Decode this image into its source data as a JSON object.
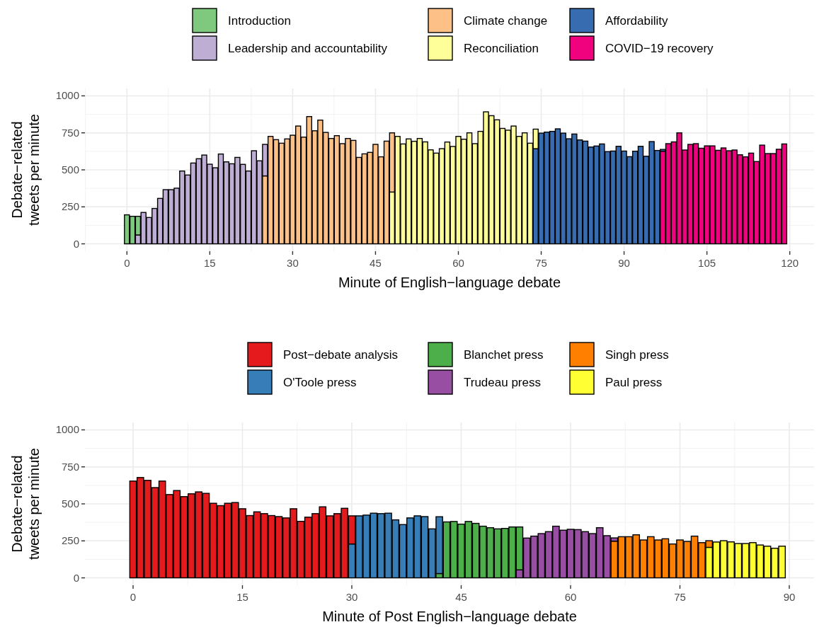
{
  "chart_data": [
    {
      "type": "bar",
      "stacked": true,
      "xlabel": "Minute of English−language debate",
      "ylabel": "Debate−related\ntweets per minute",
      "xlim": [
        -7.6,
        124.4
      ],
      "xticks": [
        0,
        15,
        30,
        45,
        60,
        75,
        90,
        105,
        120
      ],
      "ylim": [
        -50,
        1050
      ],
      "yticks": [
        0,
        250,
        500,
        750,
        1000
      ],
      "grid": true,
      "legend": "top",
      "x": [
        0,
        1,
        2,
        3,
        4,
        5,
        6,
        7,
        8,
        9,
        10,
        11,
        12,
        13,
        14,
        15,
        16,
        17,
        18,
        19,
        20,
        21,
        22,
        23,
        24,
        25,
        26,
        27,
        28,
        29,
        30,
        31,
        32,
        33,
        34,
        35,
        36,
        37,
        38,
        39,
        40,
        41,
        42,
        43,
        44,
        45,
        46,
        47,
        48,
        49,
        50,
        51,
        52,
        53,
        54,
        55,
        56,
        57,
        58,
        59,
        60,
        61,
        62,
        63,
        64,
        65,
        66,
        67,
        68,
        69,
        70,
        71,
        72,
        73,
        74,
        75,
        76,
        77,
        78,
        79,
        80,
        81,
        82,
        83,
        84,
        85,
        86,
        87,
        88,
        89,
        90,
        91,
        92,
        93,
        94,
        95,
        96,
        97,
        98,
        99,
        100,
        101,
        102,
        103,
        104,
        105,
        106,
        107,
        108,
        109,
        110,
        111,
        112,
        113,
        114,
        115,
        116,
        117,
        118,
        119
      ],
      "series": [
        {
          "name": "COVID−19 recovery",
          "color": "#f0027f",
          "values": [
            null,
            null,
            null,
            null,
            null,
            null,
            null,
            null,
            null,
            null,
            null,
            null,
            null,
            null,
            null,
            null,
            null,
            null,
            null,
            null,
            null,
            null,
            null,
            null,
            null,
            null,
            null,
            null,
            null,
            null,
            null,
            null,
            null,
            null,
            null,
            null,
            null,
            null,
            null,
            null,
            null,
            null,
            null,
            null,
            null,
            null,
            null,
            null,
            null,
            null,
            null,
            null,
            null,
            null,
            null,
            null,
            null,
            null,
            null,
            null,
            null,
            null,
            null,
            null,
            null,
            null,
            null,
            null,
            null,
            null,
            null,
            null,
            null,
            null,
            null,
            null,
            null,
            null,
            null,
            null,
            null,
            null,
            null,
            null,
            null,
            null,
            null,
            null,
            null,
            null,
            null,
            null,
            null,
            null,
            null,
            null,
            null,
            626,
            677,
            689,
            750,
            634,
            672,
            677,
            646,
            662,
            662,
            632,
            648,
            629,
            634,
            602,
            588,
            613,
            556,
            667,
            610,
            610,
            639,
            675
          ]
        },
        {
          "name": "Affordability",
          "color": "#386cb0",
          "values": [
            null,
            null,
            null,
            null,
            null,
            null,
            null,
            null,
            null,
            null,
            null,
            null,
            null,
            null,
            null,
            null,
            null,
            null,
            null,
            null,
            null,
            null,
            null,
            null,
            null,
            null,
            null,
            null,
            null,
            null,
            null,
            null,
            null,
            null,
            null,
            null,
            null,
            null,
            null,
            null,
            null,
            null,
            null,
            null,
            null,
            null,
            null,
            null,
            null,
            null,
            null,
            null,
            null,
            null,
            null,
            null,
            null,
            null,
            null,
            null,
            null,
            null,
            null,
            null,
            null,
            null,
            null,
            null,
            null,
            null,
            null,
            null,
            null,
            null,
            643,
            748,
            755,
            760,
            777,
            748,
            710,
            742,
            702,
            694,
            654,
            661,
            675,
            623,
            627,
            659,
            627,
            589,
            626,
            659,
            592,
            691,
            631,
            12,
            null,
            null,
            null,
            null,
            null,
            null,
            null,
            null,
            null,
            null,
            null,
            null,
            null,
            null,
            null,
            null,
            null,
            null,
            null,
            null,
            null,
            null
          ]
        },
        {
          "name": "Reconciliation",
          "color": "#ffff99",
          "values": [
            null,
            null,
            null,
            null,
            null,
            null,
            null,
            null,
            null,
            null,
            null,
            null,
            null,
            null,
            null,
            null,
            null,
            null,
            null,
            null,
            null,
            null,
            null,
            null,
            null,
            null,
            null,
            null,
            null,
            null,
            null,
            null,
            null,
            null,
            null,
            null,
            null,
            null,
            null,
            null,
            null,
            null,
            null,
            null,
            null,
            null,
            null,
            null,
            350,
            726,
            675,
            709,
            693,
            712,
            689,
            635,
            613,
            643,
            688,
            658,
            726,
            707,
            750,
            677,
            760,
            892,
            866,
            838,
            780,
            768,
            796,
            726,
            750,
            680,
            132,
            null,
            null,
            null,
            null,
            null,
            null,
            null,
            null,
            null,
            null,
            null,
            null,
            null,
            null,
            null,
            null,
            null,
            null,
            null,
            null,
            null,
            null,
            null,
            null,
            null,
            null,
            null,
            null,
            null,
            null,
            null,
            null,
            null,
            null,
            null,
            null,
            null,
            null,
            null,
            null,
            null,
            null,
            null,
            null,
            null
          ]
        },
        {
          "name": "Climate change",
          "color": "#fdc086",
          "values": [
            null,
            null,
            null,
            null,
            null,
            null,
            null,
            null,
            null,
            null,
            null,
            null,
            null,
            null,
            null,
            null,
            null,
            null,
            null,
            null,
            null,
            null,
            null,
            null,
            null,
            459,
            726,
            704,
            680,
            709,
            734,
            796,
            721,
            860,
            764,
            836,
            753,
            712,
            731,
            677,
            712,
            699,
            584,
            608,
            618,
            672,
            588,
            694,
            400,
            null,
            null,
            null,
            null,
            null,
            null,
            null,
            null,
            null,
            null,
            null,
            null,
            null,
            null,
            null,
            null,
            null,
            null,
            null,
            null,
            null,
            null,
            null,
            null,
            null,
            null,
            null,
            null,
            null,
            null,
            null,
            null,
            null,
            null,
            null,
            null,
            null,
            null,
            null,
            null,
            null,
            null,
            null,
            null,
            null,
            null,
            null,
            null,
            null,
            null,
            null,
            null,
            null,
            null,
            null,
            null,
            null,
            null,
            null,
            null,
            null,
            null,
            null,
            null,
            null,
            null,
            null,
            null,
            null,
            null,
            null
          ]
        },
        {
          "name": "Leadership and accountability",
          "color": "#beaed4",
          "values": [
            null,
            null,
            60,
            212,
            178,
            239,
            307,
            366,
            366,
            376,
            492,
            465,
            546,
            575,
            600,
            538,
            514,
            607,
            554,
            541,
            584,
            537,
            492,
            629,
            561,
            213,
            null,
            null,
            null,
            null,
            null,
            null,
            null,
            null,
            null,
            null,
            null,
            null,
            null,
            null,
            null,
            null,
            null,
            null,
            null,
            null,
            null,
            null,
            null,
            null,
            null,
            null,
            null,
            null,
            null,
            null,
            null,
            null,
            null,
            null,
            null,
            null,
            null,
            null,
            null,
            null,
            null,
            null,
            null,
            null,
            null,
            null,
            null,
            null,
            null,
            null,
            null,
            null,
            null,
            null,
            null,
            null,
            null,
            null,
            null,
            null,
            null,
            null,
            null,
            null,
            null,
            null,
            null,
            null,
            null,
            null,
            null,
            null,
            null,
            null,
            null,
            null,
            null,
            null,
            null,
            null,
            null,
            null,
            null,
            null,
            null,
            null,
            null,
            null,
            null,
            null,
            null,
            null,
            null,
            null
          ]
        },
        {
          "name": "Introduction",
          "color": "#7fc97f",
          "values": [
            196,
            186,
            126,
            null,
            null,
            null,
            null,
            null,
            null,
            null,
            null,
            null,
            null,
            null,
            null,
            null,
            null,
            null,
            null,
            null,
            null,
            null,
            null,
            null,
            null,
            null,
            null,
            null,
            null,
            null,
            null,
            null,
            null,
            null,
            null,
            null,
            null,
            null,
            null,
            null,
            null,
            null,
            null,
            null,
            null,
            null,
            null,
            null,
            null,
            null,
            null,
            null,
            null,
            null,
            null,
            null,
            null,
            null,
            null,
            null,
            null,
            null,
            null,
            null,
            null,
            null,
            null,
            null,
            null,
            null,
            null,
            null,
            null,
            null,
            null,
            null,
            null,
            null,
            null,
            null,
            null,
            null,
            null,
            null,
            null,
            null,
            null,
            null,
            null,
            null,
            null,
            null,
            null,
            null,
            null,
            null,
            null,
            null,
            null,
            null,
            null,
            null,
            null,
            null,
            null,
            null,
            null,
            null,
            null,
            null,
            null,
            null,
            null,
            null,
            null,
            null,
            null,
            null,
            null,
            null
          ]
        }
      ]
    },
    {
      "type": "bar",
      "stacked": true,
      "xlabel": "Minute of Post English−language debate",
      "ylabel": "Debate−related\ntweets per minute",
      "xlim": [
        -6.6,
        93.4
      ],
      "xticks": [
        0,
        15,
        30,
        45,
        60,
        75,
        90
      ],
      "ylim": [
        -50,
        1050
      ],
      "yticks": [
        0,
        250,
        500,
        750,
        1000
      ],
      "grid": true,
      "legend": "top",
      "x": [
        0,
        1,
        2,
        3,
        4,
        5,
        6,
        7,
        8,
        9,
        10,
        11,
        12,
        13,
        14,
        15,
        16,
        17,
        18,
        19,
        20,
        21,
        22,
        23,
        24,
        25,
        26,
        27,
        28,
        29,
        30,
        31,
        32,
        33,
        34,
        35,
        36,
        37,
        38,
        39,
        40,
        41,
        42,
        43,
        44,
        45,
        46,
        47,
        48,
        49,
        50,
        51,
        52,
        53,
        54,
        55,
        56,
        57,
        58,
        59,
        60,
        61,
        62,
        63,
        64,
        65,
        66,
        67,
        68,
        69,
        70,
        71,
        72,
        73,
        74,
        75,
        76,
        77,
        78,
        79,
        80,
        81,
        82,
        83,
        84,
        85,
        86,
        87,
        88,
        89
      ],
      "series": [
        {
          "name": "Paul press",
          "color": "#ffff33",
          "values": [
            null,
            null,
            null,
            null,
            null,
            null,
            null,
            null,
            null,
            null,
            null,
            null,
            null,
            null,
            null,
            null,
            null,
            null,
            null,
            null,
            null,
            null,
            null,
            null,
            null,
            null,
            null,
            null,
            null,
            null,
            null,
            null,
            null,
            null,
            null,
            null,
            null,
            null,
            null,
            null,
            null,
            null,
            null,
            null,
            null,
            null,
            null,
            null,
            null,
            null,
            null,
            null,
            null,
            null,
            null,
            null,
            null,
            null,
            null,
            null,
            null,
            null,
            null,
            null,
            null,
            null,
            null,
            null,
            null,
            null,
            null,
            null,
            null,
            null,
            null,
            null,
            null,
            null,
            null,
            206,
            242,
            251,
            243,
            232,
            232,
            238,
            222,
            214,
            200,
            214
          ]
        },
        {
          "name": "Singh press",
          "color": "#ff7f00",
          "values": [
            null,
            null,
            null,
            null,
            null,
            null,
            null,
            null,
            null,
            null,
            null,
            null,
            null,
            null,
            null,
            null,
            null,
            null,
            null,
            null,
            null,
            null,
            null,
            null,
            null,
            null,
            null,
            null,
            null,
            null,
            null,
            null,
            null,
            null,
            null,
            null,
            null,
            null,
            null,
            null,
            null,
            null,
            null,
            null,
            null,
            null,
            null,
            null,
            null,
            null,
            null,
            null,
            null,
            null,
            null,
            null,
            null,
            null,
            null,
            null,
            null,
            null,
            null,
            null,
            null,
            null,
            248,
            278,
            278,
            291,
            256,
            278,
            256,
            264,
            229,
            256,
            246,
            282,
            238,
            45,
            null,
            null,
            null,
            null,
            null,
            null,
            null,
            null,
            null,
            null
          ]
        },
        {
          "name": "Trudeau press",
          "color": "#984ea3",
          "values": [
            null,
            null,
            null,
            null,
            null,
            null,
            null,
            null,
            null,
            null,
            null,
            null,
            null,
            null,
            null,
            null,
            null,
            null,
            null,
            null,
            null,
            null,
            null,
            null,
            null,
            null,
            null,
            null,
            null,
            null,
            null,
            null,
            null,
            null,
            null,
            null,
            null,
            null,
            null,
            null,
            null,
            null,
            null,
            null,
            null,
            null,
            null,
            null,
            null,
            null,
            null,
            null,
            null,
            54,
            269,
            282,
            299,
            312,
            349,
            322,
            328,
            326,
            312,
            299,
            339,
            285,
            22,
            null,
            null,
            null,
            null,
            null,
            null,
            null,
            null,
            null,
            null,
            null,
            null,
            null,
            null,
            null,
            null,
            null,
            null,
            null,
            null,
            null,
            null,
            null
          ]
        },
        {
          "name": "Blanchet press",
          "color": "#4daf4a",
          "values": [
            null,
            null,
            null,
            null,
            null,
            null,
            null,
            null,
            null,
            null,
            null,
            null,
            null,
            null,
            null,
            null,
            null,
            null,
            null,
            null,
            null,
            null,
            null,
            null,
            null,
            null,
            null,
            null,
            null,
            null,
            null,
            null,
            null,
            null,
            null,
            null,
            null,
            null,
            null,
            null,
            null,
            null,
            29,
            378,
            381,
            363,
            381,
            368,
            349,
            339,
            331,
            334,
            344,
            290,
            null,
            null,
            null,
            null,
            null,
            null,
            null,
            null,
            null,
            null,
            null,
            null,
            null,
            null,
            null,
            null,
            null,
            null,
            null,
            null,
            null,
            null,
            null,
            null,
            null,
            null,
            null,
            null,
            null,
            null,
            null,
            null,
            null,
            null,
            null,
            null
          ]
        },
        {
          "name": "O'Toole press",
          "color": "#377eb8",
          "values": [
            null,
            null,
            null,
            null,
            null,
            null,
            null,
            null,
            null,
            null,
            null,
            null,
            null,
            null,
            null,
            null,
            null,
            null,
            null,
            null,
            null,
            null,
            null,
            null,
            null,
            null,
            null,
            null,
            null,
            null,
            229,
            419,
            424,
            437,
            434,
            437,
            392,
            360,
            405,
            419,
            414,
            331,
            384,
            null,
            null,
            null,
            null,
            null,
            null,
            null,
            null,
            null,
            null,
            null,
            null,
            null,
            null,
            null,
            null,
            null,
            null,
            null,
            null,
            null,
            null,
            null,
            null,
            null,
            null,
            null,
            null,
            null,
            null,
            null,
            null,
            null,
            null,
            null,
            null,
            null,
            null,
            null,
            null,
            null,
            null,
            null,
            null,
            null,
            null,
            null
          ]
        },
        {
          "name": "Post−debate analysis",
          "color": "#e41a1c",
          "values": [
            654,
            678,
            659,
            610,
            654,
            563,
            590,
            549,
            568,
            581,
            571,
            504,
            488,
            504,
            509,
            467,
            421,
            446,
            434,
            421,
            414,
            405,
            467,
            382,
            410,
            434,
            480,
            419,
            434,
            470,
            190,
            null,
            null,
            null,
            null,
            null,
            null,
            null,
            null,
            null,
            null,
            null,
            null,
            null,
            null,
            null,
            null,
            null,
            null,
            null,
            null,
            null,
            null,
            null,
            null,
            null,
            null,
            null,
            null,
            null,
            null,
            null,
            null,
            null,
            null,
            null,
            null,
            null,
            null,
            null,
            null,
            null,
            null,
            null,
            null,
            null,
            null,
            null,
            null,
            null,
            null,
            null,
            null,
            null,
            null,
            null,
            null,
            null,
            null,
            null
          ]
        }
      ]
    }
  ]
}
